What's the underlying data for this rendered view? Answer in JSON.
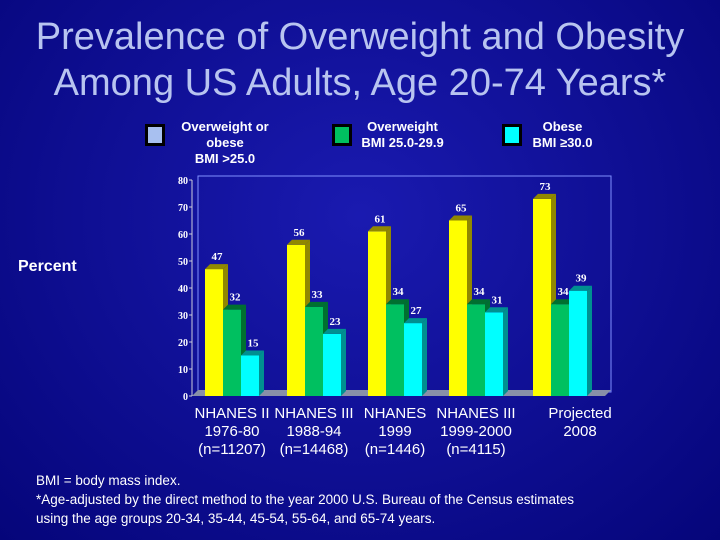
{
  "chart_data": {
    "type": "bar",
    "title": "Prevalence of Overweight and Obesity Among US Adults, Age 20-74 Years*",
    "ylabel": "Percent",
    "ylim": [
      0,
      80
    ],
    "yticks": [
      "0",
      "10",
      "20",
      "30",
      "40",
      "50",
      "60",
      "70",
      "80"
    ],
    "categories": [
      [
        "NHANES II",
        "1976-80",
        "(n=11207)"
      ],
      [
        "NHANES III",
        "1988-94",
        "(n=14468)"
      ],
      [
        "NHANES",
        "1999",
        "(n=1446)"
      ],
      [
        "NHANES III",
        "1999-2000",
        "(n=4115)"
      ],
      [
        "Projected",
        "2008",
        ""
      ]
    ],
    "series": [
      {
        "name": "Overweight or obese BMI >25.0",
        "legend": [
          "Overweight or",
          "obese",
          "BMI >25.0"
        ],
        "values": [
          47,
          56,
          61,
          65,
          73
        ],
        "color": "#ffff00",
        "legend_color": "#a8c0f0"
      },
      {
        "name": "Overweight BMI 25.0-29.9",
        "legend": [
          "Overweight",
          "BMI 25.0-29.9"
        ],
        "values": [
          32,
          33,
          34,
          34,
          34
        ],
        "color": "#00c060",
        "legend_color": "#00c060"
      },
      {
        "name": "Obese BMI ≥30.0",
        "legend": [
          "Obese",
          "BMI ≥30.0"
        ],
        "values": [
          15,
          23,
          27,
          31,
          39
        ],
        "color": "#00ffff",
        "legend_color": "#00ffff"
      }
    ]
  },
  "footnotes": [
    "BMI = body mass index.",
    "*Age-adjusted by the direct method to the year 2000 U.S. Bureau of the Census estimates",
    "using the age groups 20-34, 35-44, 45-54, 55-64, and 65-74 years."
  ]
}
